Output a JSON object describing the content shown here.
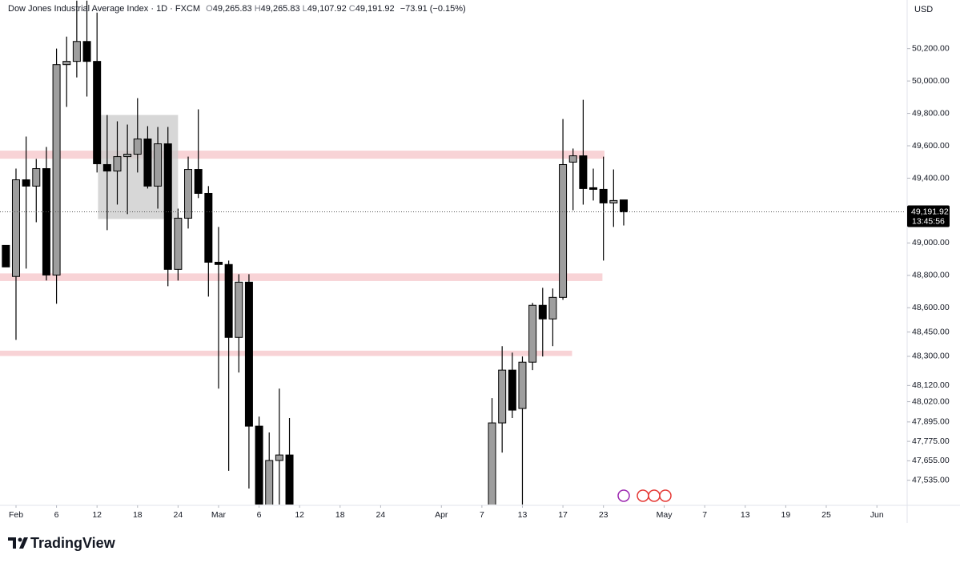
{
  "header": {
    "title": "Dow Jones Industrial Average Index · 1D · FXCM",
    "open_label": "O",
    "open": "49,265.83",
    "high_label": "H",
    "high": "49,265.83",
    "low_label": "L",
    "low": "49,107.92",
    "close_label": "C",
    "close": "49,191.92",
    "change": "−73.91 (−0.15%)"
  },
  "chart_data": {
    "type": "candlestick",
    "currency": "USD",
    "grid": false,
    "up_color": "#9e9e9e",
    "down_color": "#000000",
    "wick_color": "#000000",
    "x": [
      -1,
      0,
      1,
      2,
      3,
      4,
      5,
      6,
      7,
      8,
      9,
      10,
      11,
      12,
      13,
      14,
      15,
      16,
      17,
      18,
      19,
      20,
      21,
      22,
      23,
      24,
      25,
      26,
      27,
      47,
      48,
      49,
      50,
      51,
      52,
      53,
      54,
      55,
      56,
      57,
      58,
      59,
      60
    ],
    "open": [
      48985,
      48793,
      49390,
      49351,
      49459,
      48802,
      50101,
      50121,
      50244,
      50121,
      49484,
      49444,
      49533,
      49548,
      49642,
      49351,
      49612,
      48837,
      49153,
      49454,
      49306,
      48881,
      48867,
      48417,
      48758,
      47869,
      47360,
      47657,
      47691,
      47360,
      47889,
      48215,
      47978,
      48264,
      48615,
      48531,
      48664,
      49499,
      49538,
      49341,
      49331,
      49247,
      49265.83
    ],
    "high": [
      48985,
      49459,
      49657,
      49519,
      49593,
      50200,
      50274,
      50496,
      50496,
      50422,
      49790,
      49751,
      49731,
      49894,
      49721,
      49716,
      49716,
      49212,
      49533,
      49825,
      49351,
      49099,
      48891,
      48807,
      48807,
      47928,
      47830,
      48101,
      47919,
      48042,
      48363,
      48323,
      48299,
      48630,
      48723,
      48719,
      49765,
      49583,
      49884,
      49459,
      49533,
      49454,
      49265.83
    ],
    "low": [
      48852,
      48402,
      48842,
      49128,
      48768,
      48625,
      49840,
      50022,
      49904,
      49435,
      49079,
      49237,
      49178,
      49435,
      49336,
      49212,
      48733,
      48768,
      49089,
      49277,
      48669,
      48101,
      47593,
      48200,
      47484,
      47300,
      47340,
      47350,
      47340,
      47340,
      47706,
      47919,
      47370,
      48215,
      48299,
      48363,
      48649,
      49202,
      49237,
      49262,
      48891,
      49099,
      49107.92
    ],
    "close": [
      48852,
      49390,
      49351,
      49459,
      48802,
      50101,
      50121,
      50244,
      50121,
      49489,
      49444,
      49533,
      49548,
      49642,
      49351,
      49612,
      48837,
      49153,
      49454,
      49306,
      48881,
      48867,
      48417,
      48758,
      47869,
      47320,
      47657,
      47691,
      47360,
      47889,
      48215,
      47968,
      48264,
      48615,
      48531,
      48664,
      49484,
      49538,
      49336,
      49331,
      49247,
      49262,
      49191.92
    ],
    "xlim": [
      -1.58,
      87.75
    ],
    "ylim": [
      47385,
      50500
    ],
    "yticks": [
      {
        "value": 50200,
        "label": "50,200.00"
      },
      {
        "value": 50000,
        "label": "50,000.00"
      },
      {
        "value": 49800,
        "label": "49,800.00"
      },
      {
        "value": 49600,
        "label": "49,600.00"
      },
      {
        "value": 49400,
        "label": "49,400.00"
      },
      {
        "value": 49000,
        "label": "49,000.00"
      },
      {
        "value": 48800,
        "label": "48,800.00"
      },
      {
        "value": 48600,
        "label": "48,600.00"
      },
      {
        "value": 48450,
        "label": "48,450.00"
      },
      {
        "value": 48300,
        "label": "48,300.00"
      },
      {
        "value": 48120,
        "label": "48,120.00"
      },
      {
        "value": 48020,
        "label": "48,020.00"
      },
      {
        "value": 47895,
        "label": "47,895.00"
      },
      {
        "value": 47775,
        "label": "47,775.00"
      },
      {
        "value": 47655,
        "label": "47,655.00"
      },
      {
        "value": 47535,
        "label": "47,535.00"
      }
    ],
    "xticks": [
      {
        "value": 0,
        "label": "Feb"
      },
      {
        "value": 4,
        "label": "6"
      },
      {
        "value": 8,
        "label": "12"
      },
      {
        "value": 12,
        "label": "18"
      },
      {
        "value": 16,
        "label": "24"
      },
      {
        "value": 20,
        "label": "Mar"
      },
      {
        "value": 24,
        "label": "6"
      },
      {
        "value": 28,
        "label": "12"
      },
      {
        "value": 32,
        "label": "18"
      },
      {
        "value": 36,
        "label": "24"
      },
      {
        "value": 42,
        "label": "Apr"
      },
      {
        "value": 46,
        "label": "7"
      },
      {
        "value": 50,
        "label": "13"
      },
      {
        "value": 54,
        "label": "17"
      },
      {
        "value": 58,
        "label": "23"
      },
      {
        "value": 64,
        "label": "May"
      },
      {
        "value": 68,
        "label": "7"
      },
      {
        "value": 72,
        "label": "13"
      },
      {
        "value": 76,
        "label": "19"
      },
      {
        "value": 80,
        "label": "25"
      },
      {
        "value": 85,
        "label": "Jun"
      }
    ],
    "zones": [
      {
        "low": 49520,
        "high": 49570,
        "start": -1.58,
        "end": 58.1
      },
      {
        "low": 48765,
        "high": 48812,
        "start": -1.58,
        "end": 57.9
      },
      {
        "low": 48302,
        "high": 48335,
        "start": -1.58,
        "end": 54.9
      },
      {
        "low": 49148,
        "high": 49790,
        "start": 8.1,
        "end": 16
      }
    ],
    "zone_colors": [
      "#f8d3d6",
      "#f8d3d6",
      "#f8d3d6",
      "#c9c9c9"
    ],
    "last_price": {
      "value": 49191.92,
      "label": "49,191.92"
    },
    "countdown": "13:45:56"
  },
  "footer": {
    "logo": "TradingView"
  }
}
